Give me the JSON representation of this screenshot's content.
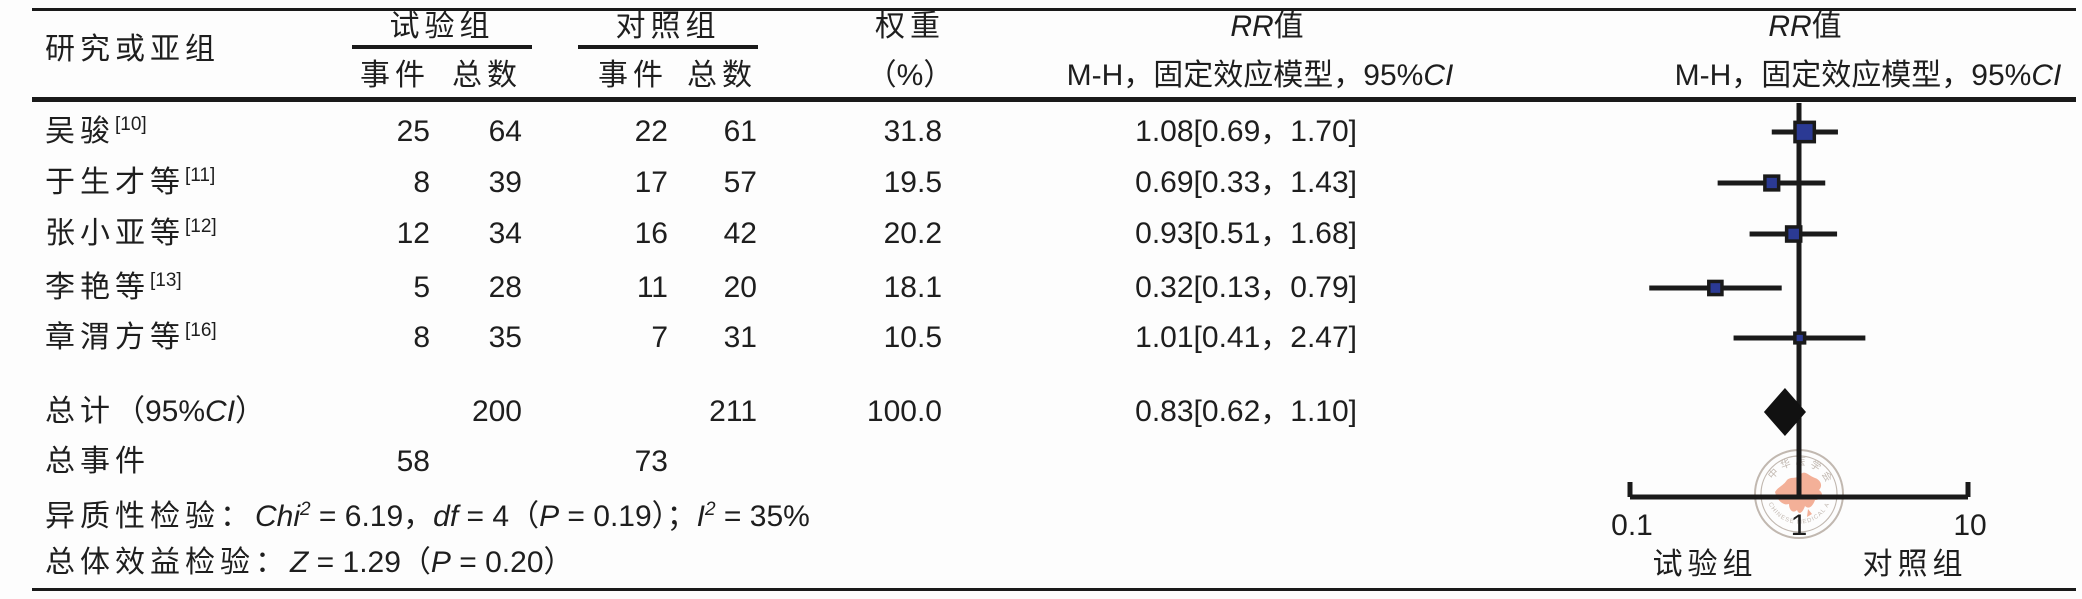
{
  "table": {
    "header": {
      "study": "研究或亚组",
      "exp_group": "试验组",
      "ctrl_group": "对照组",
      "events": "事件",
      "total": "总数",
      "weight_line1": "权重",
      "weight_line2": "（%）",
      "rr_segments": [
        {
          "t": "RR",
          "i": 1
        },
        {
          "t": "值"
        }
      ],
      "mh_segments": [
        {
          "t": "M-H，固定效应模型，95%"
        },
        {
          "t": "CI",
          "i": 1
        }
      ]
    },
    "rows": [
      {
        "name": "吴骏",
        "ref": "[10]",
        "e1": "25",
        "n1": "64",
        "e2": "22",
        "n2": "61",
        "weight": "31.8",
        "rr": "1.08[0.69，1.70]"
      },
      {
        "name": "于生才等",
        "ref": "[11]",
        "e1": "8",
        "n1": "39",
        "e2": "17",
        "n2": "57",
        "weight": "19.5",
        "rr": "0.69[0.33，1.43]"
      },
      {
        "name": "张小亚等",
        "ref": "[12]",
        "e1": "12",
        "n1": "34",
        "e2": "16",
        "n2": "42",
        "weight": "20.2",
        "rr": "0.93[0.51，1.68]"
      },
      {
        "name": "李艳等",
        "ref": "[13]",
        "e1": "5",
        "n1": "28",
        "e2": "11",
        "n2": "20",
        "weight": "18.1",
        "rr": "0.32[0.13，0.79]"
      },
      {
        "name": "章渭方等",
        "ref": "[16]",
        "e1": "8",
        "n1": "35",
        "e2": "7",
        "n2": "31",
        "weight": "10.5",
        "rr": "1.01[0.41，2.47]"
      }
    ],
    "total_row": {
      "label_segments": [
        {
          "t": "总计",
          "z": 1
        },
        {
          "t": "（95%"
        },
        {
          "t": "CI",
          "i": 1
        },
        {
          "t": "）"
        }
      ],
      "n1": "200",
      "n2": "211",
      "weight": "100.0",
      "rr": "0.83[0.62，1.10]"
    },
    "total_events": {
      "label": "总事件",
      "e1": "58",
      "e2": "73"
    },
    "heterogeneity_segments": [
      {
        "t": "异质性检验：",
        "z": 1
      },
      {
        "t": "Chi",
        "i": 1
      },
      {
        "t": "2",
        "i": 1,
        "s": 1
      },
      {
        "t": " = 6.19，"
      },
      {
        "t": "df",
        "i": 1
      },
      {
        "t": " = 4（"
      },
      {
        "t": "P",
        "i": 1
      },
      {
        "t": " = 0.19）；",
        "z": 0
      },
      {
        "t": "I",
        "i": 1
      },
      {
        "t": "2",
        "i": 1,
        "s": 1
      },
      {
        "t": " = 35%"
      }
    ],
    "overall_segments": [
      {
        "t": "总体效益检验：",
        "z": 1
      },
      {
        "t": "Z",
        "i": 1
      },
      {
        "t": " = 1.29（"
      },
      {
        "t": "P",
        "i": 1
      },
      {
        "t": " = 0.20）"
      }
    ]
  },
  "plot": {
    "axis": {
      "min_label": "0.1",
      "mid_label": "1",
      "max_label": "10",
      "left_group": "试验组",
      "right_group": "对照组"
    },
    "square_color": "#2b3a94",
    "line_color": "#1a1a1a",
    "watermark": {
      "top_text": "中华医学会",
      "bottom_text": "CHINESE MEDICAL ASSOCIATION",
      "map_color": "#f2a387",
      "ring_color": "#b7aca3"
    }
  },
  "chart_data": {
    "type": "forest",
    "effect_measure": "RR",
    "model": "M-H 固定效应模型 (fixed effect), 95% CI",
    "x_axis": {
      "scale": "log",
      "min": 0.1,
      "max": 10,
      "ticks": [
        0.1,
        1,
        10
      ],
      "left_label": "试验组",
      "right_label": "对照组"
    },
    "studies": [
      {
        "name": "吴骏[10]",
        "events_exp": 25,
        "total_exp": 64,
        "events_ctrl": 22,
        "total_ctrl": 61,
        "weight_pct": 31.8,
        "rr": 1.08,
        "ci_low": 0.69,
        "ci_high": 1.7
      },
      {
        "name": "于生才等[11]",
        "events_exp": 8,
        "total_exp": 39,
        "events_ctrl": 17,
        "total_ctrl": 57,
        "weight_pct": 19.5,
        "rr": 0.69,
        "ci_low": 0.33,
        "ci_high": 1.43
      },
      {
        "name": "张小亚等[12]",
        "events_exp": 12,
        "total_exp": 34,
        "events_ctrl": 16,
        "total_ctrl": 42,
        "weight_pct": 20.2,
        "rr": 0.93,
        "ci_low": 0.51,
        "ci_high": 1.68
      },
      {
        "name": "李艳等[13]",
        "events_exp": 5,
        "total_exp": 28,
        "events_ctrl": 11,
        "total_ctrl": 20,
        "weight_pct": 18.1,
        "rr": 0.32,
        "ci_low": 0.13,
        "ci_high": 0.79
      },
      {
        "name": "章渭方等[16]",
        "events_exp": 8,
        "total_exp": 35,
        "events_ctrl": 7,
        "total_ctrl": 31,
        "weight_pct": 10.5,
        "rr": 1.01,
        "ci_low": 0.41,
        "ci_high": 2.47
      }
    ],
    "total": {
      "label": "总计（95%CI）",
      "total_exp": 200,
      "total_ctrl": 211,
      "weight_pct": 100.0,
      "rr": 0.83,
      "ci_low": 0.62,
      "ci_high": 1.1,
      "total_events_exp": 58,
      "total_events_ctrl": 73
    },
    "heterogeneity": {
      "chi2": 6.19,
      "df": 4,
      "p": 0.19,
      "i2_pct": 35
    },
    "overall_effect": {
      "z": 1.29,
      "p": 0.2
    }
  }
}
